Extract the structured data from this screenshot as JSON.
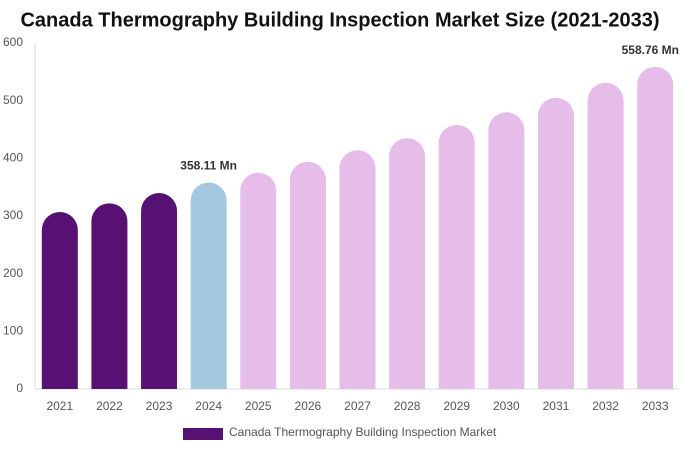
{
  "chart_data": {
    "type": "bar",
    "title": "Canada Thermography Building Inspection Market Size (2021-2033)",
    "categories": [
      "2021",
      "2022",
      "2023",
      "2024",
      "2025",
      "2026",
      "2027",
      "2028",
      "2029",
      "2030",
      "2031",
      "2032",
      "2033"
    ],
    "series": [
      {
        "name": "Canada Thermography Building Inspection Market",
        "color": "#561173",
        "values": [
          307,
          322,
          340,
          358.11,
          375,
          394,
          414,
          435,
          458,
          480,
          505,
          531,
          558.76
        ],
        "value_labels": [
          null,
          null,
          null,
          "358.11 Mn",
          null,
          null,
          null,
          null,
          null,
          null,
          null,
          null,
          "558.76 Mn"
        ],
        "colors": [
          "#561173",
          "#561173",
          "#561173",
          "#a4c9df",
          "#e6bde8",
          "#e6bde8",
          "#e6bde8",
          "#e6bde8",
          "#e6bde8",
          "#e6bde8",
          "#e6bde8",
          "#e6bde8",
          "#e6bde8"
        ]
      }
    ],
    "ylim": [
      0,
      600
    ],
    "yticks": [
      0,
      100,
      200,
      300,
      400,
      500,
      600
    ],
    "grid": false
  }
}
